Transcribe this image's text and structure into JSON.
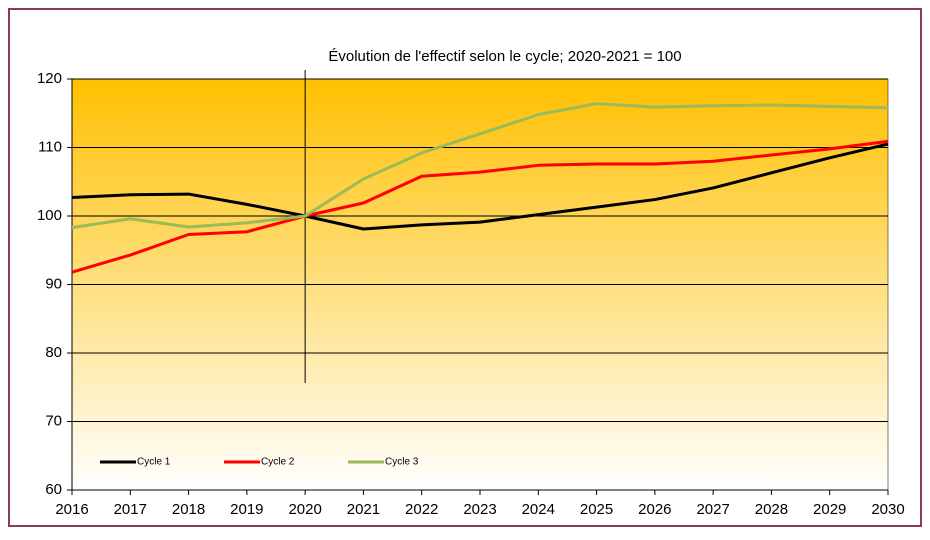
{
  "chart_data": {
    "type": "line",
    "title": "Évolution de l'effectif selon le cycle; 2020-2021 = 100",
    "x": [
      2016,
      2017,
      2018,
      2019,
      2020,
      2021,
      2022,
      2023,
      2024,
      2025,
      2026,
      2027,
      2028,
      2029,
      2030
    ],
    "series": [
      {
        "name": "Cycle 1",
        "color": "#000000",
        "values": [
          102.7,
          103.1,
          103.2,
          101.7,
          100,
          98.1,
          98.7,
          99.1,
          100.2,
          101.3,
          102.4,
          104.1,
          106.3,
          108.5,
          110.5
        ]
      },
      {
        "name": "Cycle 2",
        "color": "#ff0000",
        "values": [
          91.8,
          94.3,
          97.3,
          97.7,
          100,
          101.9,
          105.8,
          106.4,
          107.4,
          107.6,
          107.6,
          108.0,
          108.9,
          109.8,
          110.9
        ]
      },
      {
        "name": "Cycle 3",
        "color": "#9bbb59",
        "values": [
          98.3,
          99.6,
          98.4,
          99.0,
          100,
          105.4,
          109.2,
          112.0,
          114.8,
          116.4,
          115.9,
          116.1,
          116.2,
          116.0,
          115.8
        ]
      }
    ],
    "xlim": [
      2016,
      2030
    ],
    "xticks": [
      2016,
      2017,
      2018,
      2019,
      2020,
      2021,
      2022,
      2023,
      2024,
      2025,
      2026,
      2027,
      2028,
      2029,
      2030
    ],
    "ylim": [
      60,
      120
    ],
    "yticks": [
      60,
      70,
      80,
      90,
      100,
      110,
      120
    ],
    "grid": true,
    "vline": 2020,
    "legend": "lower left"
  }
}
